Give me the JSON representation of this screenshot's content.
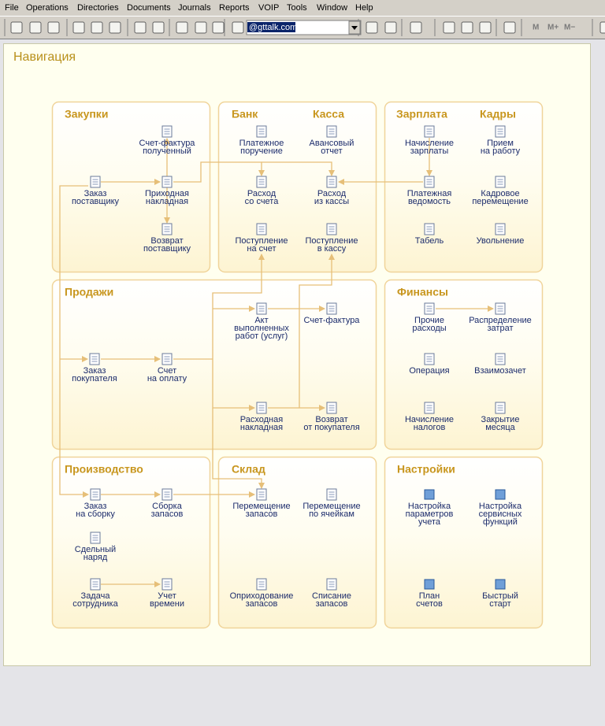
{
  "menu": [
    "File",
    "Operations",
    "Directories",
    "Documents",
    "Journals",
    "Reports",
    "VOIP",
    "Tools",
    "Window",
    "Help"
  ],
  "toolbar": {
    "combo": "@gttalk.com",
    "buttons": [
      "M",
      "M+",
      "M−"
    ]
  },
  "panel": {
    "title": "Навигация",
    "sections": [
      {
        "titles": [
          "Закупки"
        ],
        "items": [
          {
            "lines": [
              "Счет-фактура",
              "полученный"
            ]
          },
          {
            "lines": [
              "Заказ",
              "поставщику"
            ]
          },
          {
            "lines": [
              "Приходная",
              "накладная"
            ]
          },
          {
            "lines": [
              "Возврат",
              "поставщику"
            ]
          }
        ]
      },
      {
        "titles": [
          "Банк",
          "Касса"
        ],
        "items": [
          {
            "lines": [
              "Платежное",
              "поручение"
            ]
          },
          {
            "lines": [
              "Авансовый",
              "отчет"
            ]
          },
          {
            "lines": [
              "Расход",
              "со счета"
            ]
          },
          {
            "lines": [
              "Расход",
              "из кассы"
            ]
          },
          {
            "lines": [
              "Поступление",
              "на счет"
            ]
          },
          {
            "lines": [
              "Поступление",
              "в кассу"
            ]
          }
        ]
      },
      {
        "titles": [
          "Зарплата",
          "Кадры"
        ],
        "items": [
          {
            "lines": [
              "Начисление",
              "зарплаты"
            ]
          },
          {
            "lines": [
              "Прием",
              "на работу"
            ]
          },
          {
            "lines": [
              "Платежная",
              "ведомость"
            ]
          },
          {
            "lines": [
              "Кадровое",
              "перемещение"
            ]
          },
          {
            "lines": [
              "Табель"
            ]
          },
          {
            "lines": [
              "Увольнение"
            ]
          }
        ]
      },
      {
        "titles": [
          "Продажи"
        ],
        "items": [
          {
            "lines": [
              "Акт",
              "выполненных",
              "работ (услуг)"
            ]
          },
          {
            "lines": [
              "Счет-фактура"
            ]
          },
          {
            "lines": [
              "Заказ",
              "покупателя"
            ]
          },
          {
            "lines": [
              "Счет",
              "на оплату"
            ]
          },
          {
            "lines": [
              "Расходная",
              "накладная"
            ]
          },
          {
            "lines": [
              "Возврат",
              "от покупателя"
            ]
          }
        ]
      },
      {
        "titles": [
          "Финансы"
        ],
        "items": [
          {
            "lines": [
              "Прочие",
              "расходы"
            ]
          },
          {
            "lines": [
              "Распределение",
              "затрат"
            ]
          },
          {
            "lines": [
              "Операция"
            ]
          },
          {
            "lines": [
              "Взаимозачет"
            ]
          },
          {
            "lines": [
              "Начисление",
              "налогов"
            ]
          },
          {
            "lines": [
              "Закрытие",
              "месяца"
            ]
          }
        ]
      },
      {
        "titles": [
          "Производство"
        ],
        "items": [
          {
            "lines": [
              "Заказ",
              "на сборку"
            ]
          },
          {
            "lines": [
              "Сборка",
              "запасов"
            ]
          },
          {
            "lines": [
              "Сдельный",
              "наряд"
            ]
          },
          {
            "lines": [
              "Задача",
              "сотрудника"
            ]
          },
          {
            "lines": [
              "Учет",
              "времени"
            ]
          }
        ]
      },
      {
        "titles": [
          "Склад"
        ],
        "items": [
          {
            "lines": [
              "Перемещение",
              "запасов"
            ]
          },
          {
            "lines": [
              "Перемещение",
              "по ячейкам"
            ]
          },
          {
            "lines": [
              "Оприходование",
              "запасов"
            ]
          },
          {
            "lines": [
              "Списание",
              "запасов"
            ]
          }
        ]
      },
      {
        "titles": [
          "Настройки"
        ],
        "items": [
          {
            "lines": [
              "Настройка",
              "параметров",
              "учета"
            ]
          },
          {
            "lines": [
              "Настройка",
              "сервисных",
              "функций"
            ]
          },
          {
            "lines": [
              "План",
              "счетов"
            ]
          },
          {
            "lines": [
              "Быстрый",
              "старт"
            ]
          }
        ]
      }
    ]
  }
}
